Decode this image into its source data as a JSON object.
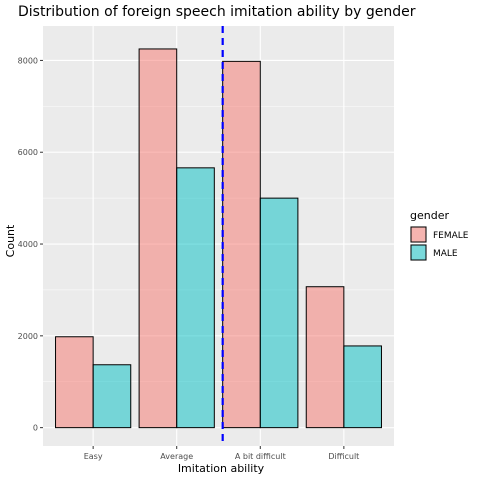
{
  "chart_data": {
    "type": "bar",
    "title": "Distribution of foreign speech imitation ability by gender",
    "xlabel": "Imitation ability",
    "ylabel": "Count",
    "categories": [
      "Easy",
      "Average",
      "A bit difficult",
      "Difficult"
    ],
    "ylim": [
      -400,
      8750
    ],
    "yticks": [
      0,
      2000,
      4000,
      6000,
      8000
    ],
    "series": [
      {
        "name": "FEMALE",
        "values": [
          1980,
          8250,
          7980,
          3070
        ],
        "color": "#F8766D"
      },
      {
        "name": "MALE",
        "values": [
          1370,
          5660,
          5000,
          1780
        ],
        "color": "#00BFC4"
      }
    ],
    "reference_line": {
      "x_position": 2.55,
      "style": "dashed",
      "color": "#0000FF"
    },
    "grid": true,
    "legend": {
      "title": "gender",
      "position": "right"
    }
  }
}
